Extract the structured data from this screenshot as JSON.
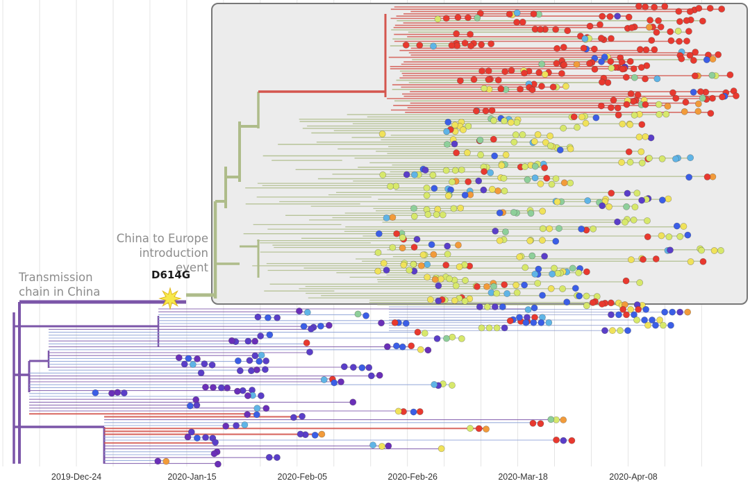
{
  "chart_data": {
    "type": "scatter",
    "subtype": "phylogenetic-time-tree",
    "title": "",
    "xlabel": "",
    "ylabel": "",
    "x_tick_labels": [
      "2019-Dec-24",
      "2020-Jan-15",
      "2020-Feb-05",
      "2020-Feb-26",
      "2020-Mar-18",
      "2020-Apr-08"
    ],
    "x_ticks": [
      "2019-12-24",
      "2020-01-15",
      "2020-02-05",
      "2020-02-26",
      "2020-03-18",
      "2020-04-08"
    ],
    "xlim": [
      "2019-12-08",
      "2020-04-24"
    ],
    "grid": true,
    "legend": "none",
    "annotations": {
      "china_chain": "Transmission chain in China",
      "china_chain_lines": [
        "Transmission",
        "chain in China"
      ],
      "europe_intro": "China to Europe introduction event",
      "europe_intro_lines": [
        "China to Europe",
        "introduction event"
      ],
      "mutation": "D614G"
    },
    "highlight_box": {
      "label": "",
      "x_start": "2020-01-15",
      "x_end": "2020-04-24"
    },
    "colors": {
      "china_branch": "#7b55a8",
      "europe_branch": "#aebc8a",
      "red_clade": "#d4564e",
      "mutation_star": "#f7e84a",
      "box_fill": "#ececec",
      "box_stroke": "#777777",
      "tip_palette": [
        "#e8392f",
        "#d7e86b",
        "#f0e25a",
        "#5a3ec8",
        "#3b5ee6",
        "#5fb4e6",
        "#8ecf9a",
        "#f29b3a",
        "#6a2fb8"
      ]
    }
  }
}
